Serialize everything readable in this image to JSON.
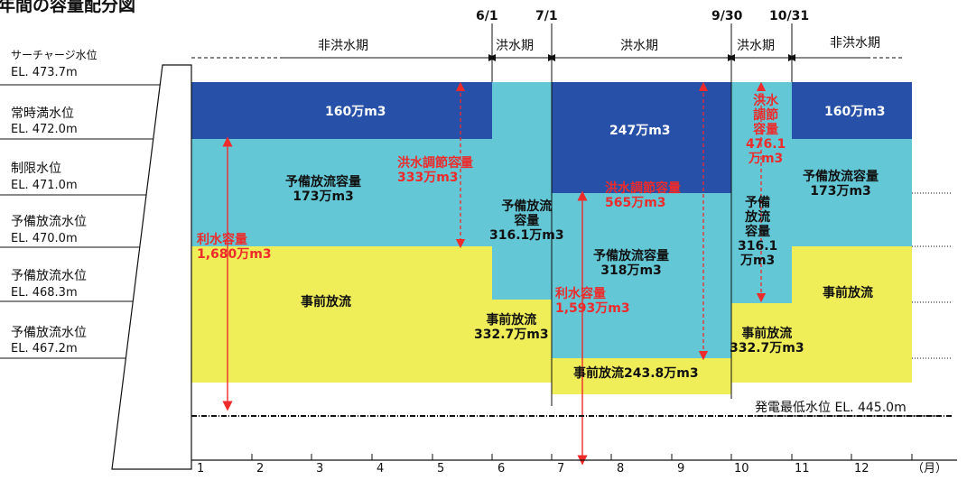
{
  "title": "年間の容量配分図",
  "levels": [
    {
      "name": "サーチャージ水位",
      "el": "EL. 473.7m"
    },
    {
      "name": "常時満水位",
      "el": "EL. 472.0m"
    },
    {
      "name": "制限水位",
      "el": "EL. 471.0m"
    },
    {
      "name": "予備放流水位",
      "el": "EL. 470.0m"
    },
    {
      "name": "予備放流水位",
      "el": "EL. 468.3m"
    },
    {
      "name": "予備放流水位",
      "el": "EL. 467.2m"
    }
  ],
  "dates": [
    "6/1",
    "7/1",
    "9/30",
    "10/31"
  ],
  "periods": [
    "非洪水期",
    "洪水期",
    "洪水期",
    "洪水期",
    "非洪水期"
  ],
  "blocks": {
    "blue_left": "160万m3",
    "blue_mid": "247万m3",
    "blue_right": "160万m3",
    "cyan_left": "予備放流容量\n173万m3",
    "cyan_jun": "予備放流\n容量\n316.1万m3",
    "cyan_mid": "予備放流容量\n318万m3",
    "cyan_oct": "予備\n放流\n容量\n316.1\n万m3",
    "cyan_right": "予備放流容量\n173万m3",
    "yellow_left": "事前放流",
    "yellow_jun": "事前放流\n332.7万m3",
    "yellow_mid": "事前放流243.8万m3",
    "yellow_oct": "事前放流\n332.7万m3",
    "yellow_right": "事前放流"
  },
  "annotations": {
    "flood_left": "洪水調節容量\n333万m3",
    "flood_mid": "洪水調節容量\n565万m3",
    "flood_oct": "洪水\n調節\n容量\n476.1\n万m3",
    "water_left": "利水容量\n1,680万m3",
    "water_mid": "利水容量\n1,593万m3"
  },
  "min_level": "発電最低水位 EL. 445.0m",
  "months": [
    "1",
    "2",
    "3",
    "4",
    "5",
    "6",
    "7",
    "8",
    "9",
    "10",
    "11",
    "12"
  ],
  "month_unit": "（月）",
  "colors": {
    "blue": "#2750a8",
    "cyan": "#63c7d6",
    "yellow": "#f0ee58",
    "red": "#ee2b2b"
  }
}
